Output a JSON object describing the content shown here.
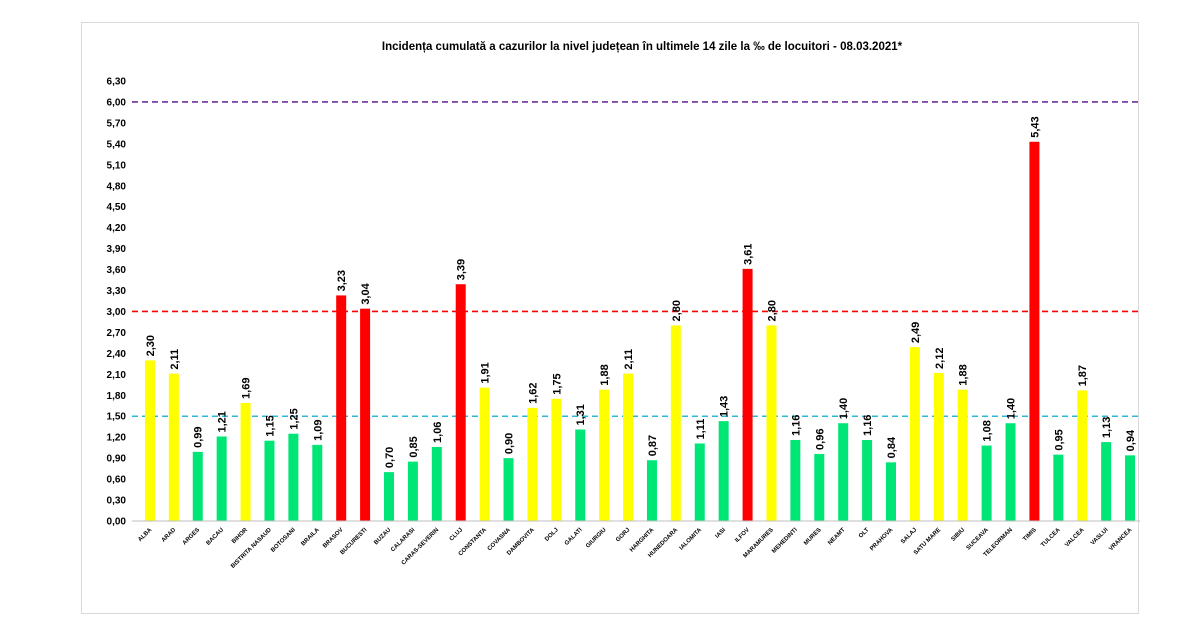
{
  "chart_data": {
    "type": "bar",
    "title": "Incidența cumulată a cazurilor la nivel județean în ultimele 14 zile la ‰ de locuitori - 08.03.2021*",
    "xlabel": "",
    "ylabel": "",
    "ylim": [
      0,
      6.3
    ],
    "yticks": [
      "0,00",
      "0,30",
      "0,60",
      "0,90",
      "1,20",
      "1,50",
      "1,80",
      "2,10",
      "2,40",
      "2,70",
      "3,00",
      "3,30",
      "3,60",
      "3,90",
      "4,20",
      "4,50",
      "4,80",
      "5,10",
      "5,40",
      "5,70",
      "6,00",
      "6,30"
    ],
    "grid": false,
    "categories": [
      "ALBA",
      "ARAD",
      "ARGES",
      "BACAU",
      "BIHOR",
      "BISTRITA NASAUD",
      "BOTOSANI",
      "BRAILA",
      "BRASOV",
      "BUCURESTI",
      "BUZAU",
      "CALARASI",
      "CARAS-SEVERIN",
      "CLUJ",
      "CONSTANTA",
      "COVASNA",
      "DAMBOVITA",
      "DOLJ",
      "GALATI",
      "GIURGIU",
      "GORJ",
      "HARGHITA",
      "HUNEDOARA",
      "IALOMITA",
      "IASI",
      "ILFOV",
      "MARAMURES",
      "MEHEDINTI",
      "MURES",
      "NEAMT",
      "OLT",
      "PRAHOVA",
      "SALAJ",
      "SATU MARE",
      "SIBIU",
      "SUCEAVA",
      "TELEORMAN",
      "TIMIS",
      "TULCEA",
      "VALCEA",
      "VASLUI",
      "VRANCEA"
    ],
    "values": [
      2.3,
      2.11,
      0.99,
      1.21,
      1.69,
      1.15,
      1.25,
      1.09,
      3.23,
      3.04,
      0.7,
      0.85,
      1.06,
      3.39,
      1.91,
      0.9,
      1.62,
      1.75,
      1.31,
      1.88,
      2.11,
      0.87,
      2.8,
      1.11,
      1.43,
      3.61,
      2.8,
      1.16,
      0.96,
      1.4,
      1.16,
      0.84,
      2.49,
      2.12,
      1.88,
      1.08,
      1.4,
      5.43,
      0.95,
      1.87,
      1.13,
      0.94
    ],
    "value_labels": [
      "2,30",
      "2,11",
      "0,99",
      "1,21",
      "1,69",
      "1,15",
      "1,25",
      "1,09",
      "3,23",
      "3,04",
      "0,70",
      "0,85",
      "1,06",
      "3,39",
      "1,91",
      "0,90",
      "1,62",
      "1,75",
      "1,31",
      "1,88",
      "2,11",
      "0,87",
      "2,80",
      "1,11",
      "1,43",
      "3,61",
      "2,80",
      "1,16",
      "0,96",
      "1,40",
      "1,16",
      "0,84",
      "2,49",
      "2,12",
      "1,88",
      "1,08",
      "1,40",
      "5,43",
      "0,95",
      "1,87",
      "1,13",
      "0,94"
    ],
    "thresholds": [
      {
        "value": 1.5,
        "color": "#2eb8d8",
        "style": "dashed"
      },
      {
        "value": 3.0,
        "color": "#ff0000",
        "style": "dashed"
      },
      {
        "value": 6.0,
        "color": "#7030a0",
        "style": "dashed"
      }
    ],
    "colors": {
      "green": "#00e676",
      "yellow": "#ffff00",
      "red": "#ff0000",
      "axis": "#bfbfbf",
      "frame": "#d9d9d9"
    }
  }
}
